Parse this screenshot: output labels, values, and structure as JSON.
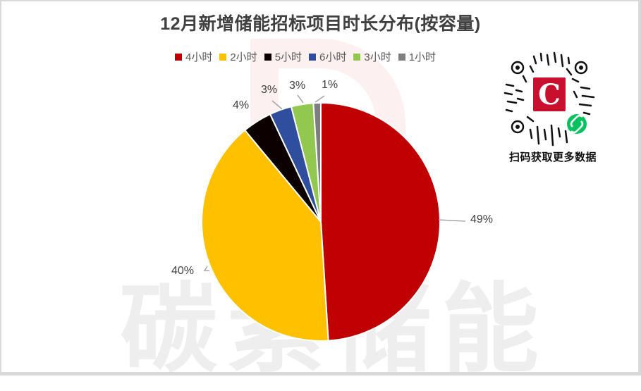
{
  "chart_data": {
    "type": "pie",
    "title": "12月新增储能招标项目时长分布(按容量)",
    "categories": [
      "4小时",
      "2小时",
      "5小时",
      "6小时",
      "3小时",
      "1小时"
    ],
    "values": [
      49,
      40,
      4,
      3,
      3,
      1
    ],
    "value_labels": [
      "49%",
      "40%",
      "4%",
      "3%",
      "3%",
      "1%"
    ],
    "colors": [
      "#C00000",
      "#FFC000",
      "#0D0000",
      "#2F4F9E",
      "#92C84F",
      "#7F7F7F"
    ],
    "legend_position": "top",
    "start_angle_deg": 0,
    "direction": "clockwise"
  },
  "legend": [
    {
      "label": "4小时",
      "color": "#C00000"
    },
    {
      "label": "2小时",
      "color": "#FFC000"
    },
    {
      "label": "5小时",
      "color": "#0D0000"
    },
    {
      "label": "6小时",
      "color": "#2F4F9E"
    },
    {
      "label": "3小时",
      "color": "#92C84F"
    },
    {
      "label": "1小时",
      "color": "#7F7F7F"
    }
  ],
  "labels": {
    "l4h": "49%",
    "l2h": "40%",
    "l5h": "4%",
    "l6h": "3%",
    "l3h": "3%",
    "l1h": "1%"
  },
  "watermark": {
    "text": "碳素储能"
  },
  "qr": {
    "caption": "扫码获取更多数据",
    "logo_letter": "C"
  }
}
